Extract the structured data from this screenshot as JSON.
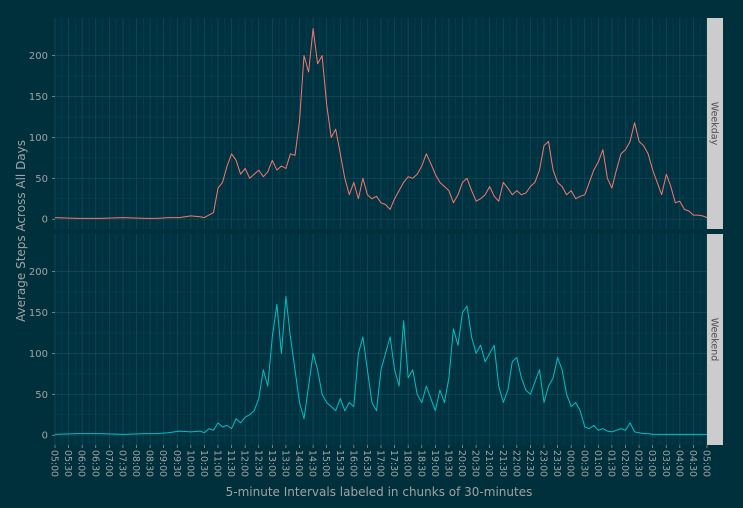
{
  "chart_data": {
    "type": "line",
    "xlabel": "5-minute Intervals labeled in chunks of 30-minutes",
    "ylabel": "Average Steps Across All Days",
    "ylim": [
      -12,
      246
    ],
    "yticks": [
      0,
      50,
      100,
      150,
      200
    ],
    "grid": true,
    "legend": "none",
    "colors": {
      "background": "#00303c",
      "panel": "#003341",
      "grid_major": "#1b4a57",
      "grid_minor": "#0f3f4c",
      "strip": "#cccccc",
      "text": "#9fa3a5",
      "weekday": "#f8766d",
      "weekend": "#00bfc4"
    },
    "x_tick_labels": [
      "05:00",
      "05:30",
      "06:00",
      "06:30",
      "07:00",
      "07:30",
      "08:00",
      "08:30",
      "09:00",
      "09:30",
      "10:00",
      "10:30",
      "11:00",
      "11:30",
      "12:00",
      "12:30",
      "13:00",
      "13:30",
      "14:00",
      "14:30",
      "15:00",
      "15:30",
      "16:00",
      "16:30",
      "17:00",
      "17:30",
      "18:00",
      "18:30",
      "19:00",
      "19:30",
      "20:00",
      "20:30",
      "21:00",
      "21:30",
      "22:00",
      "22:30",
      "23:00",
      "23:30",
      "00:00",
      "00:30",
      "01:00",
      "01:30",
      "02:00",
      "02:30",
      "03:00",
      "03:30",
      "04:00",
      "04:30",
      "05:00"
    ],
    "series": [
      {
        "name": "Weekday",
        "x": [
          0,
          10,
          20,
          30,
          40,
          45,
          50,
          55,
          60,
          64,
          66,
          68,
          70,
          72,
          74,
          76,
          78,
          80,
          82,
          84,
          86,
          88,
          90,
          92,
          94,
          96,
          98,
          100,
          102,
          104,
          106,
          108,
          110,
          112,
          114,
          116,
          118,
          120,
          122,
          124,
          126,
          128,
          130,
          132,
          134,
          136,
          138,
          140,
          142,
          144,
          146,
          148,
          150,
          152,
          154,
          156,
          158,
          160,
          162,
          164,
          166,
          168,
          170,
          172,
          174,
          176,
          178,
          180,
          182,
          184,
          186,
          188,
          190,
          192,
          194,
          196,
          198,
          200,
          202,
          204,
          206,
          208,
          210,
          212,
          214,
          216,
          218,
          220,
          222,
          224,
          226,
          228,
          230,
          232,
          234,
          236,
          238,
          240,
          242,
          244,
          246,
          248,
          250,
          252,
          254,
          256,
          258,
          260,
          262,
          264,
          266,
          268,
          270,
          272,
          274,
          276,
          278,
          280,
          282,
          284,
          286,
          288
        ],
        "y": [
          2,
          1,
          1,
          2,
          1,
          1,
          2,
          2,
          4,
          3,
          2,
          5,
          8,
          38,
          45,
          65,
          80,
          72,
          55,
          62,
          50,
          55,
          60,
          52,
          58,
          72,
          60,
          65,
          62,
          80,
          78,
          120,
          200,
          180,
          233,
          190,
          200,
          140,
          100,
          110,
          80,
          50,
          30,
          45,
          25,
          50,
          30,
          25,
          28,
          20,
          18,
          12,
          25,
          35,
          45,
          52,
          50,
          55,
          65,
          80,
          68,
          55,
          45,
          40,
          35,
          20,
          30,
          45,
          50,
          35,
          22,
          25,
          30,
          40,
          28,
          22,
          45,
          38,
          30,
          35,
          30,
          32,
          40,
          45,
          60,
          90,
          95,
          60,
          45,
          40,
          30,
          35,
          25,
          28,
          30,
          45,
          60,
          70,
          85,
          50,
          38,
          60,
          80,
          85,
          95,
          118,
          95,
          90,
          80,
          60,
          45,
          30,
          55,
          40,
          20,
          22,
          12,
          10,
          5,
          5,
          4,
          2
        ]
      },
      {
        "name": "Weekend",
        "x": [
          0,
          10,
          20,
          30,
          40,
          45,
          50,
          55,
          60,
          64,
          66,
          68,
          70,
          72,
          74,
          76,
          78,
          80,
          82,
          84,
          86,
          88,
          90,
          92,
          94,
          96,
          98,
          100,
          102,
          104,
          106,
          108,
          110,
          112,
          114,
          116,
          118,
          120,
          122,
          124,
          126,
          128,
          130,
          132,
          134,
          136,
          138,
          140,
          142,
          144,
          146,
          148,
          150,
          152,
          154,
          156,
          158,
          160,
          162,
          164,
          166,
          168,
          170,
          172,
          174,
          176,
          178,
          180,
          182,
          184,
          186,
          188,
          190,
          192,
          194,
          196,
          198,
          200,
          202,
          204,
          206,
          208,
          210,
          212,
          214,
          216,
          218,
          220,
          222,
          224,
          226,
          228,
          230,
          232,
          234,
          236,
          238,
          240,
          242,
          244,
          246,
          248,
          250,
          252,
          254,
          256,
          258,
          260,
          262,
          264,
          266,
          268,
          270,
          272,
          274,
          276,
          278,
          280,
          282,
          284,
          286,
          288
        ],
        "y": [
          1,
          2,
          2,
          1,
          2,
          2,
          3,
          5,
          4,
          5,
          3,
          8,
          6,
          15,
          10,
          12,
          8,
          20,
          15,
          22,
          25,
          30,
          45,
          80,
          60,
          120,
          160,
          100,
          170,
          120,
          80,
          40,
          20,
          60,
          100,
          80,
          50,
          40,
          35,
          30,
          45,
          30,
          40,
          35,
          100,
          120,
          80,
          40,
          30,
          80,
          100,
          120,
          80,
          60,
          140,
          70,
          80,
          50,
          40,
          60,
          45,
          30,
          55,
          40,
          70,
          130,
          110,
          150,
          158,
          120,
          100,
          110,
          90,
          100,
          110,
          60,
          40,
          55,
          90,
          95,
          70,
          55,
          50,
          65,
          80,
          40,
          60,
          70,
          95,
          80,
          50,
          35,
          40,
          30,
          10,
          8,
          12,
          6,
          8,
          5,
          4,
          6,
          8,
          6,
          15,
          4,
          3,
          2,
          2,
          1,
          1,
          1,
          1,
          1,
          1,
          1,
          1,
          1,
          1,
          1,
          1,
          1
        ]
      }
    ]
  }
}
